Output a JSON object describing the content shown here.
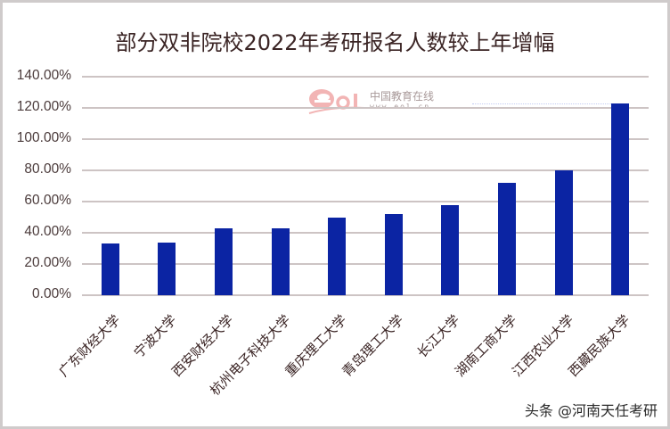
{
  "chart_data": {
    "type": "bar",
    "title": "部分双非院校2022年考研报名人数较上年增幅",
    "xlabel": "",
    "ylabel": "",
    "ylim": [
      0,
      1.4
    ],
    "grid": true,
    "legend": null,
    "y_ticks": [
      "0.00%",
      "20.00%",
      "40.00%",
      "60.00%",
      "80.00%",
      "100.00%",
      "120.00%",
      "140.00%"
    ],
    "categories": [
      "广东财经大学",
      "宁波大学",
      "西安财经大学",
      "杭州电子科技大学",
      "重庆理工大学",
      "青岛理工大学",
      "长江大学",
      "湖南工商大学",
      "江西农业大学",
      "西藏民族大学"
    ],
    "values": [
      0.33,
      0.34,
      0.43,
      0.43,
      0.5,
      0.52,
      0.58,
      0.72,
      0.8,
      1.23
    ],
    "bar_color": "#0b24a3"
  },
  "watermark": {
    "logo": "eol",
    "text": "中国教育在线",
    "url": "www.eol.cn"
  },
  "credit": "头条 @河南天任考研"
}
